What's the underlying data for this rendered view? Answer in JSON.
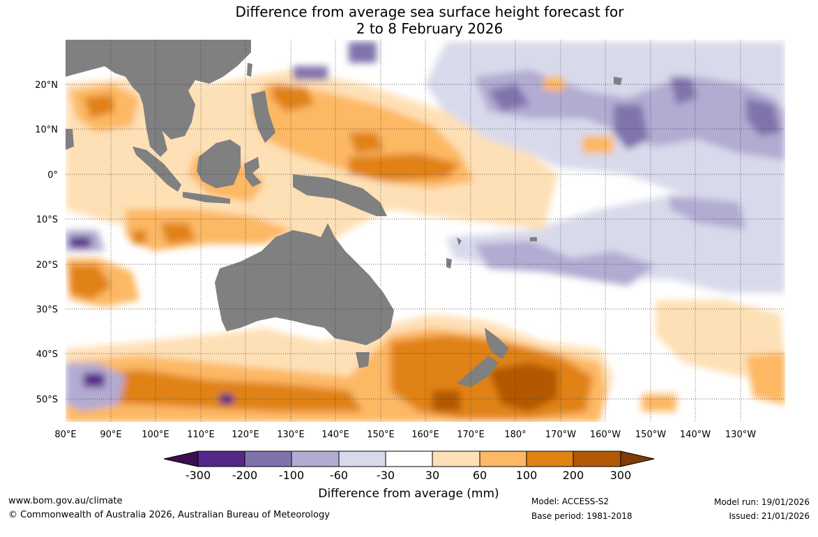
{
  "title": {
    "line1": "Difference from average sea surface height forecast for",
    "line2": "2 to 8 February 2026"
  },
  "map": {
    "lon_labels": [
      "80°E",
      "90°E",
      "100°E",
      "110°E",
      "120°E",
      "130°E",
      "140°E",
      "150°E",
      "160°E",
      "170°E",
      "180°",
      "170°W",
      "160°W",
      "150°W",
      "140°W",
      "130°W"
    ],
    "lat_labels": [
      "20°N",
      "10°N",
      "0°",
      "10°S",
      "20°S",
      "30°S",
      "40°S",
      "50°S"
    ],
    "land_color": "#808080",
    "grid_style": "dotted"
  },
  "legend": {
    "tick_labels": [
      "-300",
      "-200",
      "-100",
      "-60",
      "-30",
      "30",
      "60",
      "100",
      "200",
      "300"
    ],
    "title": "Difference from average (mm)",
    "colors": [
      "#3b0f52",
      "#542788",
      "#8073ac",
      "#b2abd2",
      "#d8daeb",
      "#ffffff",
      "#fee0b6",
      "#fdb863",
      "#e08214",
      "#b35806",
      "#7f3b08"
    ]
  },
  "footer": {
    "website": "www.bom.gov.au/climate",
    "copyright": "© Commonwealth of Australia 2026, Australian Bureau of Meteorology",
    "model": "Model: ACCESS-S2",
    "base_period": "Base period: 1981-2018",
    "model_run": "Model run: 19/01/2026",
    "issued": "Issued: 21/01/2026"
  }
}
